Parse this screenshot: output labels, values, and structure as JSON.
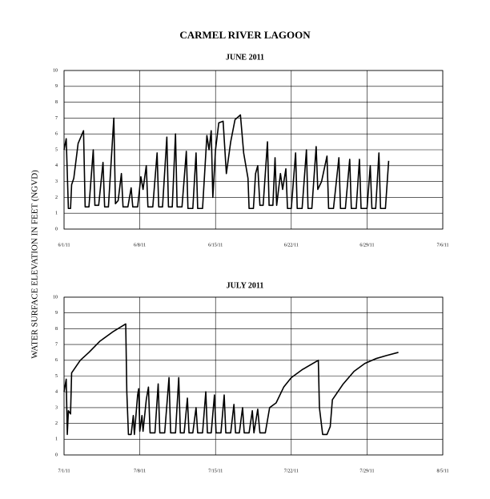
{
  "title": "CARMEL RIVER LAGOON",
  "ylabel": "WATER SURFACE ELEVATION IN FEET (NGVD)",
  "chart_data": [
    {
      "type": "line",
      "title": "JUNE 2011",
      "color": "#000000",
      "grid": true,
      "xlim": [
        0,
        35
      ],
      "ylim": [
        0,
        10
      ],
      "yticks": [
        0,
        1,
        2,
        3,
        4,
        5,
        6,
        7,
        8,
        9,
        10
      ],
      "xticks": [
        {
          "value": 0,
          "label": "6/1/11"
        },
        {
          "value": 7,
          "label": "6/8/11"
        },
        {
          "value": 14,
          "label": "6/15/11"
        },
        {
          "value": 21,
          "label": "6/22/11"
        },
        {
          "value": 28,
          "label": "6/29/11"
        },
        {
          "value": 35,
          "label": "7/6/11"
        }
      ],
      "x": [
        0,
        0.2,
        0.4,
        0.6,
        0.7,
        0.9,
        1.3,
        1.8,
        1.95,
        2.3,
        2.7,
        2.85,
        3.2,
        3.6,
        3.75,
        4.1,
        4.6,
        4.75,
        5.0,
        5.3,
        5.45,
        5.9,
        6.2,
        6.35,
        6.8,
        7.1,
        7.3,
        7.6,
        7.75,
        8.2,
        8.6,
        8.75,
        9.1,
        9.5,
        9.65,
        10.0,
        10.3,
        10.45,
        10.9,
        11.3,
        11.45,
        11.9,
        12.2,
        12.35,
        12.8,
        13.2,
        13.4,
        13.6,
        13.75,
        14.0,
        14.3,
        14.7,
        15.0,
        15.4,
        15.8,
        16.3,
        16.6,
        17.0,
        17.1,
        17.5,
        17.7,
        17.9,
        18.1,
        18.4,
        18.8,
        18.95,
        19.3,
        19.5,
        19.65,
        20.0,
        20.2,
        20.5,
        20.65,
        21.0,
        21.4,
        21.55,
        22.0,
        22.4,
        22.55,
        22.9,
        23.3,
        23.45,
        23.8,
        24.3,
        24.45,
        24.9,
        25.4,
        25.55,
        26.0,
        26.4,
        26.55,
        27.0,
        27.3,
        27.45,
        28.0,
        28.3,
        28.45,
        28.8,
        29.1,
        29.25,
        29.7,
        30.0
      ],
      "values": [
        5.0,
        5.7,
        1.3,
        1.3,
        2.8,
        3.2,
        5.4,
        6.2,
        1.4,
        1.4,
        5.0,
        1.5,
        1.5,
        4.2,
        1.4,
        1.4,
        7.0,
        1.6,
        1.8,
        3.5,
        1.4,
        1.4,
        2.6,
        1.4,
        1.4,
        3.3,
        2.5,
        4.0,
        1.4,
        1.4,
        4.8,
        1.4,
        1.4,
        5.8,
        1.4,
        1.4,
        6.0,
        1.4,
        1.4,
        4.9,
        1.3,
        1.3,
        4.8,
        1.3,
        1.3,
        5.9,
        5.0,
        6.2,
        2.0,
        5.0,
        6.7,
        6.8,
        3.5,
        5.5,
        6.9,
        7.2,
        4.8,
        3.2,
        1.3,
        1.3,
        3.5,
        4.0,
        1.5,
        1.5,
        5.5,
        1.5,
        1.5,
        4.5,
        1.5,
        3.5,
        2.5,
        3.8,
        1.3,
        1.3,
        4.8,
        1.3,
        1.3,
        5.0,
        1.3,
        1.3,
        5.2,
        2.5,
        3.0,
        4.6,
        1.3,
        1.3,
        4.5,
        1.3,
        1.3,
        4.4,
        1.3,
        1.3,
        4.4,
        1.3,
        1.3,
        4.0,
        1.3,
        1.3,
        4.8,
        1.3,
        1.3,
        4.3
      ]
    },
    {
      "type": "line",
      "title": "JULY 2011",
      "color": "#000000",
      "grid": true,
      "xlim": [
        0,
        35
      ],
      "ylim": [
        0,
        10
      ],
      "yticks": [
        0,
        1,
        2,
        3,
        4,
        5,
        6,
        7,
        8,
        9,
        10
      ],
      "xticks": [
        {
          "value": 0,
          "label": "7/1/11"
        },
        {
          "value": 7,
          "label": "7/8/11"
        },
        {
          "value": 14,
          "label": "7/15/11"
        },
        {
          "value": 21,
          "label": "7/22/11"
        },
        {
          "value": 28,
          "label": "7/29/11"
        },
        {
          "value": 35,
          "label": "8/5/11"
        }
      ],
      "x": [
        0,
        0.2,
        0.3,
        0.4,
        0.6,
        0.7,
        1.5,
        2.3,
        3.3,
        4.5,
        5.7,
        5.8,
        5.95,
        6.2,
        6.4,
        6.5,
        6.8,
        6.9,
        7.0,
        7.2,
        7.3,
        7.6,
        7.8,
        7.95,
        8.4,
        8.7,
        8.85,
        9.3,
        9.7,
        9.85,
        10.3,
        10.6,
        10.75,
        11.1,
        11.4,
        11.55,
        11.9,
        12.2,
        12.35,
        12.8,
        13.1,
        13.25,
        13.6,
        13.9,
        14.05,
        14.5,
        14.8,
        14.95,
        15.4,
        15.7,
        15.85,
        16.2,
        16.5,
        16.65,
        17.1,
        17.4,
        17.55,
        17.9,
        18.1,
        18.6,
        19.0,
        19.6,
        20.3,
        21.0,
        22.0,
        23.5,
        23.6,
        23.9,
        24.3,
        24.6,
        24.8,
        25.8,
        26.8,
        27.8,
        28.8,
        29.8,
        30.9
      ],
      "values": [
        4.0,
        4.8,
        1.3,
        2.8,
        2.6,
        5.2,
        6.0,
        6.5,
        7.2,
        7.8,
        8.3,
        4.0,
        1.3,
        1.3,
        2.5,
        1.3,
        3.8,
        4.2,
        1.5,
        2.5,
        1.5,
        3.5,
        4.3,
        1.4,
        1.4,
        4.5,
        1.4,
        1.4,
        4.9,
        1.4,
        1.4,
        4.9,
        1.4,
        1.4,
        3.6,
        1.4,
        1.4,
        3.0,
        1.4,
        1.4,
        4.0,
        1.4,
        1.4,
        3.8,
        1.4,
        1.4,
        3.8,
        1.4,
        1.4,
        3.2,
        1.4,
        1.4,
        3.0,
        1.4,
        1.4,
        2.8,
        1.4,
        2.9,
        1.4,
        1.4,
        3.0,
        3.3,
        4.3,
        4.9,
        5.4,
        6.0,
        3.0,
        1.3,
        1.3,
        1.8,
        3.5,
        4.5,
        5.3,
        5.8,
        6.1,
        6.3,
        6.5
      ]
    }
  ]
}
